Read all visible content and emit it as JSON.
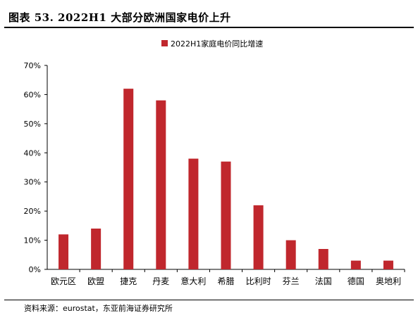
{
  "header": {
    "title": "图表 53. 2022H1 大部分欧洲国家电价上升"
  },
  "footer": {
    "source": "资料来源：eurostat，东亚前海证券研究所"
  },
  "chart_data": {
    "type": "bar",
    "categories": [
      "欧元区",
      "欧盟",
      "捷克",
      "丹麦",
      "意大利",
      "希腊",
      "比利时",
      "芬兰",
      "法国",
      "德国",
      "奥地利"
    ],
    "series": [
      {
        "name": "2022H1家庭电价同比增速",
        "values": [
          12,
          14,
          62,
          58,
          38,
          37,
          22,
          10,
          7,
          3,
          3
        ],
        "color": "#c0272d"
      }
    ],
    "y_ticks": [
      "0%",
      "10%",
      "20%",
      "30%",
      "40%",
      "50%",
      "60%",
      "70%"
    ],
    "ylim": [
      0,
      70
    ],
    "legend_position": "top-center",
    "grid": false
  }
}
